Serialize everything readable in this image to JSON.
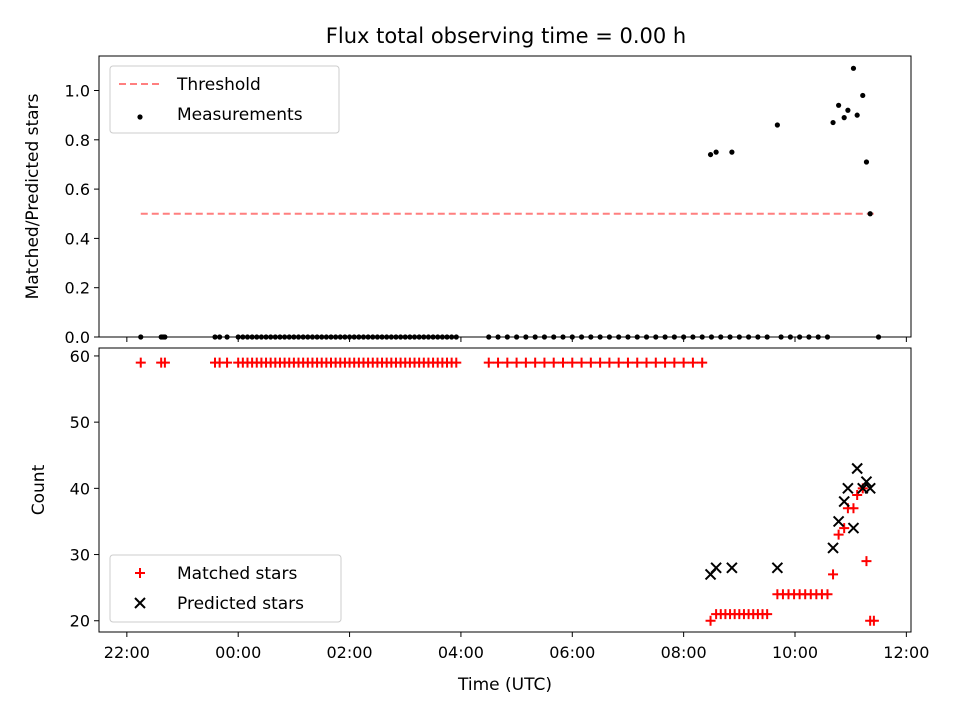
{
  "figure": {
    "title": "Flux total observing time = 0.00 h"
  },
  "chart_data": [
    {
      "type": "scatter",
      "ylabel": "Matched/Predicted stars",
      "xlabel": "",
      "xlim": [
        "21:30",
        "12:05"
      ],
      "ylim": [
        0,
        1.14
      ],
      "yticks": [
        "0.0",
        "0.2",
        "0.4",
        "0.6",
        "0.8",
        "1.0"
      ],
      "xticks": [
        "22:00",
        "00:00",
        "02:00",
        "04:00",
        "06:00",
        "08:00",
        "10:00",
        "12:00"
      ],
      "show_xticklabels": false,
      "grid": false,
      "legend": {
        "position": "upper-left",
        "entries": [
          "Threshold",
          "Measurements"
        ]
      },
      "series": [
        {
          "name": "Threshold",
          "style": "dashed-line",
          "color": "#ff7f7f",
          "x": [
            "22:15",
            "11:25"
          ],
          "y": [
            0.5,
            0.5
          ]
        },
        {
          "name": "Measurements",
          "style": "dot",
          "color": "#000000",
          "x": [
            "22:15",
            "22:37",
            "22:39",
            "22:41",
            "23:35",
            "23:40",
            "23:48",
            "00:00",
            "00:05",
            "00:10",
            "00:15",
            "00:20",
            "00:25",
            "00:30",
            "00:35",
            "00:40",
            "00:45",
            "00:50",
            "00:55",
            "01:00",
            "01:05",
            "01:10",
            "01:15",
            "01:20",
            "01:25",
            "01:30",
            "01:35",
            "01:40",
            "01:45",
            "01:50",
            "01:55",
            "02:00",
            "02:05",
            "02:10",
            "02:15",
            "02:20",
            "02:25",
            "02:30",
            "02:35",
            "02:40",
            "02:45",
            "02:50",
            "02:55",
            "03:00",
            "03:05",
            "03:10",
            "03:15",
            "03:20",
            "03:25",
            "03:30",
            "03:35",
            "03:40",
            "03:45",
            "03:50",
            "03:55",
            "04:30",
            "04:40",
            "04:50",
            "05:00",
            "05:10",
            "05:20",
            "05:30",
            "05:40",
            "05:50",
            "06:00",
            "06:10",
            "06:20",
            "06:30",
            "06:40",
            "06:50",
            "07:00",
            "07:10",
            "07:20",
            "07:30",
            "07:40",
            "07:50",
            "08:00",
            "08:10",
            "08:20",
            "08:30",
            "08:40",
            "08:50",
            "09:00",
            "09:10",
            "09:20",
            "09:30",
            "09:45",
            "09:55",
            "10:05",
            "10:15",
            "10:25",
            "10:35",
            "08:29",
            "08:35",
            "08:52",
            "09:41",
            "10:41",
            "10:47",
            "10:53",
            "10:57",
            "11:03",
            "11:07",
            "11:13",
            "11:17",
            "11:21",
            "11:30"
          ],
          "y": [
            0,
            0,
            0,
            0,
            0,
            0,
            0,
            0,
            0,
            0,
            0,
            0,
            0,
            0,
            0,
            0,
            0,
            0,
            0,
            0,
            0,
            0,
            0,
            0,
            0,
            0,
            0,
            0,
            0,
            0,
            0,
            0,
            0,
            0,
            0,
            0,
            0,
            0,
            0,
            0,
            0,
            0,
            0,
            0,
            0,
            0,
            0,
            0,
            0,
            0,
            0,
            0,
            0,
            0,
            0,
            0,
            0,
            0,
            0,
            0,
            0,
            0,
            0,
            0,
            0,
            0,
            0,
            0,
            0,
            0,
            0,
            0,
            0,
            0,
            0,
            0,
            0,
            0,
            0,
            0,
            0,
            0,
            0,
            0,
            0,
            0,
            0,
            0,
            0,
            0,
            0,
            0,
            0.74,
            0.75,
            0.75,
            0.86,
            0.87,
            0.94,
            0.89,
            0.92,
            1.09,
            0.9,
            0.98,
            0.71,
            0.5,
            0
          ]
        }
      ]
    },
    {
      "type": "scatter",
      "ylabel": "Count",
      "xlabel": "Time (UTC)",
      "xlim": [
        "21:30",
        "12:05"
      ],
      "ylim": [
        18.3,
        61.2
      ],
      "yticks": [
        "20",
        "30",
        "40",
        "50",
        "60"
      ],
      "xticks": [
        "22:00",
        "00:00",
        "02:00",
        "04:00",
        "06:00",
        "08:00",
        "10:00",
        "12:00"
      ],
      "grid": false,
      "legend": {
        "position": "lower-left",
        "entries": [
          "Matched stars",
          "Predicted stars"
        ]
      },
      "series": [
        {
          "name": "Matched stars",
          "marker": "+",
          "color": "#ff0000",
          "x": [
            "22:15",
            "22:37",
            "22:41",
            "23:35",
            "23:40",
            "23:48",
            "00:00",
            "00:05",
            "00:10",
            "00:15",
            "00:20",
            "00:25",
            "00:30",
            "00:35",
            "00:40",
            "00:45",
            "00:50",
            "00:55",
            "01:00",
            "01:05",
            "01:10",
            "01:15",
            "01:20",
            "01:25",
            "01:30",
            "01:35",
            "01:40",
            "01:45",
            "01:50",
            "01:55",
            "02:00",
            "02:05",
            "02:10",
            "02:15",
            "02:20",
            "02:25",
            "02:30",
            "02:35",
            "02:40",
            "02:45",
            "02:50",
            "02:55",
            "03:00",
            "03:05",
            "03:10",
            "03:15",
            "03:20",
            "03:25",
            "03:30",
            "03:35",
            "03:40",
            "03:45",
            "03:50",
            "03:55",
            "04:30",
            "04:40",
            "04:50",
            "05:00",
            "05:10",
            "05:20",
            "05:30",
            "05:40",
            "05:50",
            "06:00",
            "06:10",
            "06:20",
            "06:30",
            "06:40",
            "06:50",
            "07:00",
            "07:10",
            "07:20",
            "07:30",
            "07:40",
            "07:50",
            "08:00",
            "08:10",
            "08:20",
            "08:29",
            "08:35",
            "08:40",
            "08:45",
            "08:50",
            "08:55",
            "09:00",
            "09:05",
            "09:10",
            "09:15",
            "09:20",
            "09:25",
            "09:30",
            "09:41",
            "09:47",
            "09:53",
            "09:59",
            "10:05",
            "10:11",
            "10:17",
            "10:23",
            "10:29",
            "10:35",
            "10:41",
            "10:47",
            "10:53",
            "10:57",
            "11:03",
            "11:07",
            "11:13",
            "11:17",
            "11:21",
            "11:25"
          ],
          "y": [
            59,
            59,
            59,
            59,
            59,
            59,
            59,
            59,
            59,
            59,
            59,
            59,
            59,
            59,
            59,
            59,
            59,
            59,
            59,
            59,
            59,
            59,
            59,
            59,
            59,
            59,
            59,
            59,
            59,
            59,
            59,
            59,
            59,
            59,
            59,
            59,
            59,
            59,
            59,
            59,
            59,
            59,
            59,
            59,
            59,
            59,
            59,
            59,
            59,
            59,
            59,
            59,
            59,
            59,
            59,
            59,
            59,
            59,
            59,
            59,
            59,
            59,
            59,
            59,
            59,
            59,
            59,
            59,
            59,
            59,
            59,
            59,
            59,
            59,
            59,
            59,
            59,
            59,
            20,
            21,
            21,
            21,
            21,
            21,
            21,
            21,
            21,
            21,
            21,
            21,
            21,
            24,
            24,
            24,
            24,
            24,
            24,
            24,
            24,
            24,
            24,
            27,
            33,
            34,
            37,
            37,
            39,
            40,
            29,
            20,
            20
          ]
        },
        {
          "name": "Predicted stars",
          "marker": "x",
          "color": "#000000",
          "x": [
            "08:29",
            "08:35",
            "08:52",
            "09:41",
            "10:41",
            "10:47",
            "10:53",
            "10:57",
            "11:03",
            "11:07",
            "11:13",
            "11:17",
            "11:21"
          ],
          "y": [
            27,
            28,
            28,
            28,
            31,
            35,
            38,
            40,
            34,
            43,
            40,
            41,
            40
          ]
        }
      ]
    }
  ]
}
